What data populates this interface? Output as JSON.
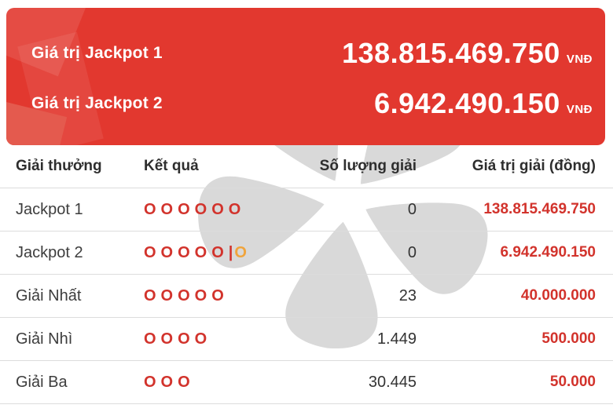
{
  "banner": {
    "items": [
      {
        "label": "Giá trị Jackpot 1",
        "value": "138.815.469.750",
        "currency": "VNĐ"
      },
      {
        "label": "Giá trị Jackpot 2",
        "value": "6.942.490.150",
        "currency": "VNĐ"
      }
    ]
  },
  "table": {
    "columns": [
      "Giải thưởng",
      "Kết quả",
      "Số lượng giải",
      "Giá trị giải (đồng)"
    ],
    "rows": [
      {
        "prize": "Jackpot 1",
        "result": {
          "main": "OOOOOO",
          "separator": "",
          "bonus": ""
        },
        "count": "0",
        "value": "138.815.469.750"
      },
      {
        "prize": "Jackpot 2",
        "result": {
          "main": "OOOOO",
          "separator": "|",
          "bonus": "O"
        },
        "count": "0",
        "value": "6.942.490.150"
      },
      {
        "prize": "Giải Nhất",
        "result": {
          "main": "OOOOO",
          "separator": "",
          "bonus": ""
        },
        "count": "23",
        "value": "40.000.000"
      },
      {
        "prize": "Giải Nhì",
        "result": {
          "main": "OOOO",
          "separator": "",
          "bonus": ""
        },
        "count": "1.449",
        "value": "500.000"
      },
      {
        "prize": "Giải Ba",
        "result": {
          "main": "OOO",
          "separator": "",
          "bonus": ""
        },
        "count": "30.445",
        "value": "50.000"
      }
    ]
  },
  "colors": {
    "banner_red": "#e2382f",
    "banner_deco_red": "#e45a4e",
    "result_red": "#d2332c",
    "bonus_orange": "#f0a43c",
    "value_red": "#d2332c",
    "watermark_gray": "#d9d9d9"
  },
  "icons": {
    "watermark": "vietlott-logo"
  }
}
